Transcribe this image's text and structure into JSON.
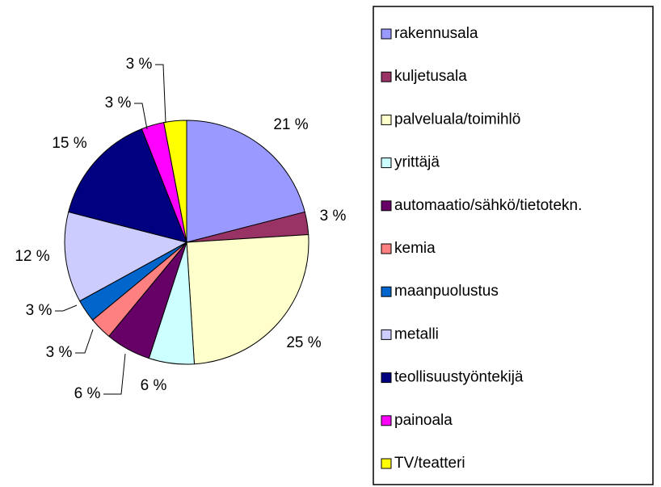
{
  "chart_data": {
    "type": "pie",
    "categories": [
      "rakennusala",
      "kuljetusala",
      "palveluala/toimihlö",
      "yrittäjä",
      "automaatio/sähkö/tietotekn.",
      "kemia",
      "maanpuolustus",
      "metalli",
      "teollisuustyöntekijä",
      "painoala",
      "TV/teatteri"
    ],
    "values": [
      21,
      3,
      25,
      6,
      6,
      3,
      3,
      12,
      15,
      3,
      3
    ],
    "value_labels": [
      "21 %",
      "3 %",
      "25 %",
      "6 %",
      "6 %",
      "3 %",
      "3 %",
      "12 %",
      "15 %",
      "3 %",
      "3 %"
    ],
    "colors": [
      "#9999ff",
      "#993366",
      "#ffffcc",
      "#ccffff",
      "#660066",
      "#ff8080",
      "#0066cc",
      "#ccccff",
      "#000080",
      "#ff00ff",
      "#ffff00"
    ],
    "legend": "right"
  }
}
